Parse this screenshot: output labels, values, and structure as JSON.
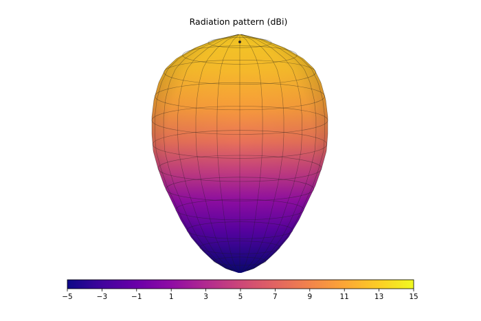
{
  "chart_data": {
    "type": "surface3d",
    "title": "Radiation pattern (dBi)",
    "colormap": "plasma",
    "colorbar": {
      "orientation": "horizontal",
      "placement": "bottom",
      "min": -5,
      "max": 15,
      "ticks": [
        -5,
        -3,
        -1,
        1,
        3,
        5,
        7,
        9,
        11,
        13,
        15
      ],
      "tick_labels": [
        "−5",
        "−3",
        "−1",
        "1",
        "3",
        "5",
        "7",
        "9",
        "11",
        "13",
        "15"
      ]
    },
    "gain_range_dbi": [
      -5,
      15
    ],
    "peak_direction": "top",
    "min_direction": "bottom",
    "mesh": "visible",
    "axes": "hidden"
  }
}
